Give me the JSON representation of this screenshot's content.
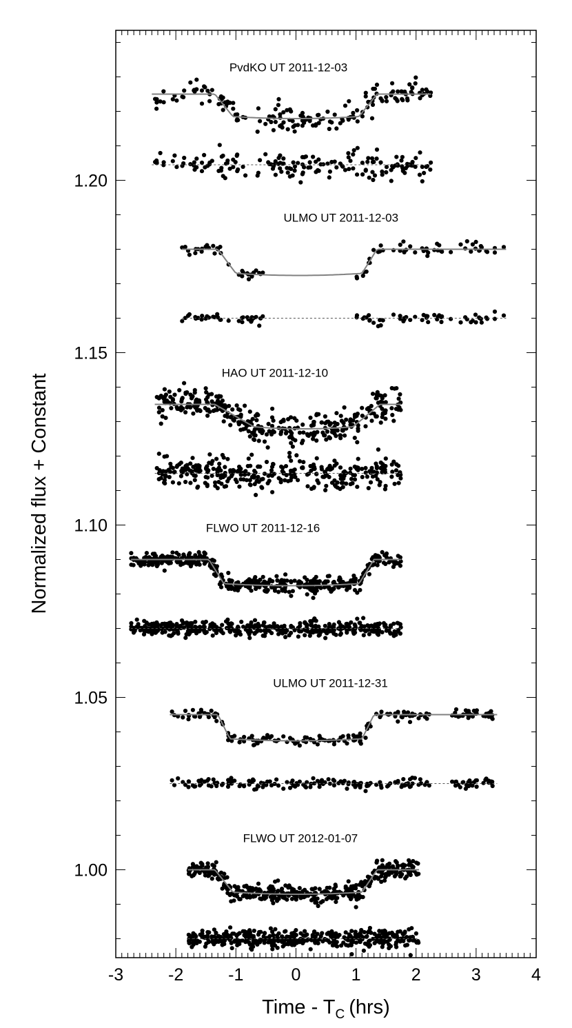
{
  "chart_data": {
    "type": "scatter",
    "xlabel": "Time - T",
    "xlabel_subscript": "C",
    "xlabel_unit": "(hrs)",
    "ylabel": "Normalized flux + Constant",
    "xlim": [
      -3,
      4
    ],
    "ylim": [
      0.9745,
      1.2435
    ],
    "x_ticks": [
      -3,
      -2,
      -1,
      0,
      1,
      2,
      3,
      4
    ],
    "x_tick_labels": [
      "-3",
      "-2",
      "-1",
      "0",
      "1",
      "2",
      "3",
      "4"
    ],
    "y_ticks": [
      1.0,
      1.05,
      1.1,
      1.15,
      1.2
    ],
    "y_tick_labels": [
      "1.00",
      "1.05",
      "1.10",
      "1.15",
      "1.20"
    ],
    "grid": false,
    "legend": "none",
    "series": [
      {
        "label": "PvdKO UT 2011-12-03",
        "x_start": -2.4,
        "x_end": 2.25,
        "baseline": 1.225,
        "depth": 0.0065,
        "ingress": [
          -1.35,
          -1.05
        ],
        "egress": [
          1.05,
          1.35
        ],
        "residual_level": 1.2045,
        "noise": 0.0018,
        "points": 170,
        "gap": null
      },
      {
        "label": "ULMO UT 2011-12-03",
        "x_start": -1.9,
        "x_end": 3.5,
        "baseline": 1.18,
        "depth": 0.007,
        "ingress": [
          -1.3,
          -1.0
        ],
        "egress": [
          1.1,
          1.35
        ],
        "residual_level": 1.16,
        "noise": 0.0009,
        "points": 130,
        "gap": [
          -0.55,
          1.0
        ]
      },
      {
        "label": "HAO UT 2011-12-10",
        "x_start": -2.35,
        "x_end": 1.75,
        "baseline": 1.135,
        "depth": 0.0065,
        "ingress": [
          -1.35,
          -0.7
        ],
        "egress": [
          0.95,
          1.4
        ],
        "residual_level": 1.115,
        "noise": 0.0022,
        "points": 340,
        "gap": null
      },
      {
        "label": "FLWO UT 2011-12-16",
        "x_start": -2.75,
        "x_end": 1.75,
        "baseline": 1.09,
        "depth": 0.007,
        "ingress": [
          -1.45,
          -1.2
        ],
        "egress": [
          1.05,
          1.3
        ],
        "residual_level": 1.07,
        "noise": 0.0011,
        "points": 450,
        "gap": null
      },
      {
        "label": "ULMO UT 2011-12-31",
        "x_start": -2.1,
        "x_end": 3.35,
        "baseline": 1.045,
        "depth": 0.007,
        "ingress": [
          -1.3,
          -1.1
        ],
        "egress": [
          1.1,
          1.3
        ],
        "residual_level": 1.025,
        "noise": 0.0008,
        "points": 190,
        "gap": [
          2.3,
          2.55
        ]
      },
      {
        "label": "FLWO UT 2012-01-07",
        "x_start": -1.8,
        "x_end": 2.05,
        "baseline": 1.0,
        "depth": 0.0065,
        "ingress": [
          -1.35,
          -1.05
        ],
        "egress": [
          1.1,
          1.35
        ],
        "residual_level": 0.98,
        "noise": 0.0013,
        "points": 430,
        "gap": null
      }
    ]
  }
}
